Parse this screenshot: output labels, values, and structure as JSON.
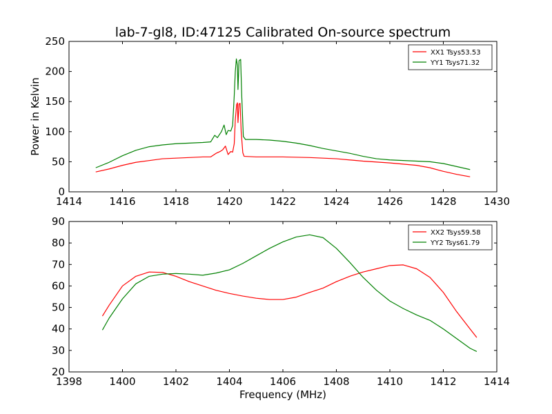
{
  "chart_data": [
    {
      "type": "line",
      "title": "lab-7-gl8, ID:47125 Calibrated On-source spectrum",
      "xlabel": "",
      "ylabel": "Power in Kelvin",
      "xlim": [
        1414,
        1430
      ],
      "ylim": [
        0,
        250
      ],
      "xticks": [
        "1414",
        "1416",
        "1418",
        "1420",
        "1422",
        "1424",
        "1426",
        "1428",
        "1430"
      ],
      "yticks": [
        "0",
        "50",
        "100",
        "150",
        "200",
        "250"
      ],
      "grid": false,
      "legend_position": "top-right",
      "series": [
        {
          "name": "XX1 Tsys53.53",
          "color": "#ff0000",
          "points": [
            [
              1415.0,
              33
            ],
            [
              1415.5,
              38
            ],
            [
              1416.0,
              44
            ],
            [
              1416.5,
              49
            ],
            [
              1417.0,
              52
            ],
            [
              1417.5,
              55
            ],
            [
              1418.0,
              56
            ],
            [
              1418.5,
              57
            ],
            [
              1419.0,
              58
            ],
            [
              1419.3,
              58
            ],
            [
              1419.5,
              64
            ],
            [
              1419.65,
              67
            ],
            [
              1419.75,
              70
            ],
            [
              1419.85,
              76
            ],
            [
              1419.95,
              62
            ],
            [
              1420.05,
              67
            ],
            [
              1420.12,
              66
            ],
            [
              1420.18,
              80
            ],
            [
              1420.22,
              120
            ],
            [
              1420.27,
              145
            ],
            [
              1420.3,
              148
            ],
            [
              1420.32,
              115
            ],
            [
              1420.36,
              146
            ],
            [
              1420.4,
              147
            ],
            [
              1420.44,
              100
            ],
            [
              1420.5,
              65
            ],
            [
              1420.55,
              59
            ],
            [
              1421.0,
              58
            ],
            [
              1422.0,
              58
            ],
            [
              1423.0,
              57
            ],
            [
              1424.0,
              55
            ],
            [
              1425.0,
              51
            ],
            [
              1426.0,
              48
            ],
            [
              1427.0,
              44
            ],
            [
              1427.5,
              40
            ],
            [
              1428.0,
              34
            ],
            [
              1428.5,
              29
            ],
            [
              1429.0,
              25
            ]
          ]
        },
        {
          "name": "YY1 Tsys71.32",
          "color": "#008000",
          "points": [
            [
              1415.0,
              40
            ],
            [
              1415.5,
              49
            ],
            [
              1416.0,
              60
            ],
            [
              1416.5,
              69
            ],
            [
              1417.0,
              75
            ],
            [
              1417.5,
              78
            ],
            [
              1418.0,
              80
            ],
            [
              1418.5,
              81
            ],
            [
              1419.0,
              82
            ],
            [
              1419.3,
              83
            ],
            [
              1419.45,
              94
            ],
            [
              1419.55,
              90
            ],
            [
              1419.7,
              100
            ],
            [
              1419.8,
              111
            ],
            [
              1419.88,
              95
            ],
            [
              1419.95,
              102
            ],
            [
              1420.05,
              101
            ],
            [
              1420.12,
              110
            ],
            [
              1420.18,
              160
            ],
            [
              1420.22,
              200
            ],
            [
              1420.26,
              221
            ],
            [
              1420.3,
              210
            ],
            [
              1420.32,
              170
            ],
            [
              1420.36,
              218
            ],
            [
              1420.42,
              220
            ],
            [
              1420.46,
              160
            ],
            [
              1420.52,
              92
            ],
            [
              1420.6,
              87
            ],
            [
              1421.0,
              87
            ],
            [
              1421.5,
              86
            ],
            [
              1422.0,
              84
            ],
            [
              1422.5,
              81
            ],
            [
              1423.0,
              77
            ],
            [
              1423.5,
              72
            ],
            [
              1424.0,
              68
            ],
            [
              1424.5,
              64
            ],
            [
              1425.0,
              59
            ],
            [
              1425.5,
              55
            ],
            [
              1426.0,
              53
            ],
            [
              1426.5,
              52
            ],
            [
              1427.0,
              51
            ],
            [
              1427.5,
              50
            ],
            [
              1428.0,
              47
            ],
            [
              1428.5,
              42
            ],
            [
              1429.0,
              37
            ]
          ]
        }
      ]
    },
    {
      "type": "line",
      "title": "",
      "xlabel": "Frequency (MHz)",
      "ylabel": "",
      "xlim": [
        1398,
        1414
      ],
      "ylim": [
        20,
        90
      ],
      "xticks": [
        "1398",
        "1400",
        "1402",
        "1404",
        "1406",
        "1408",
        "1410",
        "1412",
        "1414"
      ],
      "yticks": [
        "20",
        "30",
        "40",
        "50",
        "60",
        "70",
        "80",
        "90"
      ],
      "grid": false,
      "legend_position": "top-right",
      "series": [
        {
          "name": "XX2 Tsys59.58",
          "color": "#ff0000",
          "points": [
            [
              1399.25,
              46
            ],
            [
              1399.5,
              51
            ],
            [
              1400.0,
              60
            ],
            [
              1400.5,
              64.5
            ],
            [
              1401.0,
              66.5
            ],
            [
              1401.5,
              66.3
            ],
            [
              1402.0,
              64.5
            ],
            [
              1402.5,
              62
            ],
            [
              1403.0,
              60
            ],
            [
              1403.5,
              58
            ],
            [
              1404.0,
              56.5
            ],
            [
              1404.5,
              55.3
            ],
            [
              1405.0,
              54.3
            ],
            [
              1405.5,
              53.7
            ],
            [
              1406.0,
              53.7
            ],
            [
              1406.5,
              54.8
            ],
            [
              1407.0,
              57
            ],
            [
              1407.5,
              59
            ],
            [
              1408.0,
              62
            ],
            [
              1408.5,
              64.5
            ],
            [
              1409.0,
              66.5
            ],
            [
              1409.5,
              68
            ],
            [
              1410.0,
              69.5
            ],
            [
              1410.5,
              69.8
            ],
            [
              1411.0,
              68
            ],
            [
              1411.5,
              64
            ],
            [
              1412.0,
              57
            ],
            [
              1412.5,
              48
            ],
            [
              1413.0,
              40
            ],
            [
              1413.25,
              36
            ]
          ]
        },
        {
          "name": "YY2 Tsys61.79",
          "color": "#008000",
          "points": [
            [
              1399.25,
              39.5
            ],
            [
              1399.5,
              45
            ],
            [
              1400.0,
              54
            ],
            [
              1400.5,
              61
            ],
            [
              1401.0,
              64.5
            ],
            [
              1401.5,
              65.5
            ],
            [
              1402.0,
              65.8
            ],
            [
              1402.5,
              65.5
            ],
            [
              1403.0,
              65
            ],
            [
              1403.5,
              66
            ],
            [
              1404.0,
              67.5
            ],
            [
              1404.5,
              70.5
            ],
            [
              1405.0,
              74
            ],
            [
              1405.5,
              77.5
            ],
            [
              1406.0,
              80.5
            ],
            [
              1406.5,
              82.8
            ],
            [
              1407.0,
              83.8
            ],
            [
              1407.5,
              82.5
            ],
            [
              1408.0,
              77.5
            ],
            [
              1408.5,
              71
            ],
            [
              1409.0,
              64
            ],
            [
              1409.5,
              58
            ],
            [
              1410.0,
              53
            ],
            [
              1410.5,
              49.5
            ],
            [
              1411.0,
              46.5
            ],
            [
              1411.5,
              44
            ],
            [
              1412.0,
              40
            ],
            [
              1412.5,
              35.5
            ],
            [
              1413.0,
              31
            ],
            [
              1413.25,
              29.5
            ]
          ]
        }
      ]
    }
  ]
}
